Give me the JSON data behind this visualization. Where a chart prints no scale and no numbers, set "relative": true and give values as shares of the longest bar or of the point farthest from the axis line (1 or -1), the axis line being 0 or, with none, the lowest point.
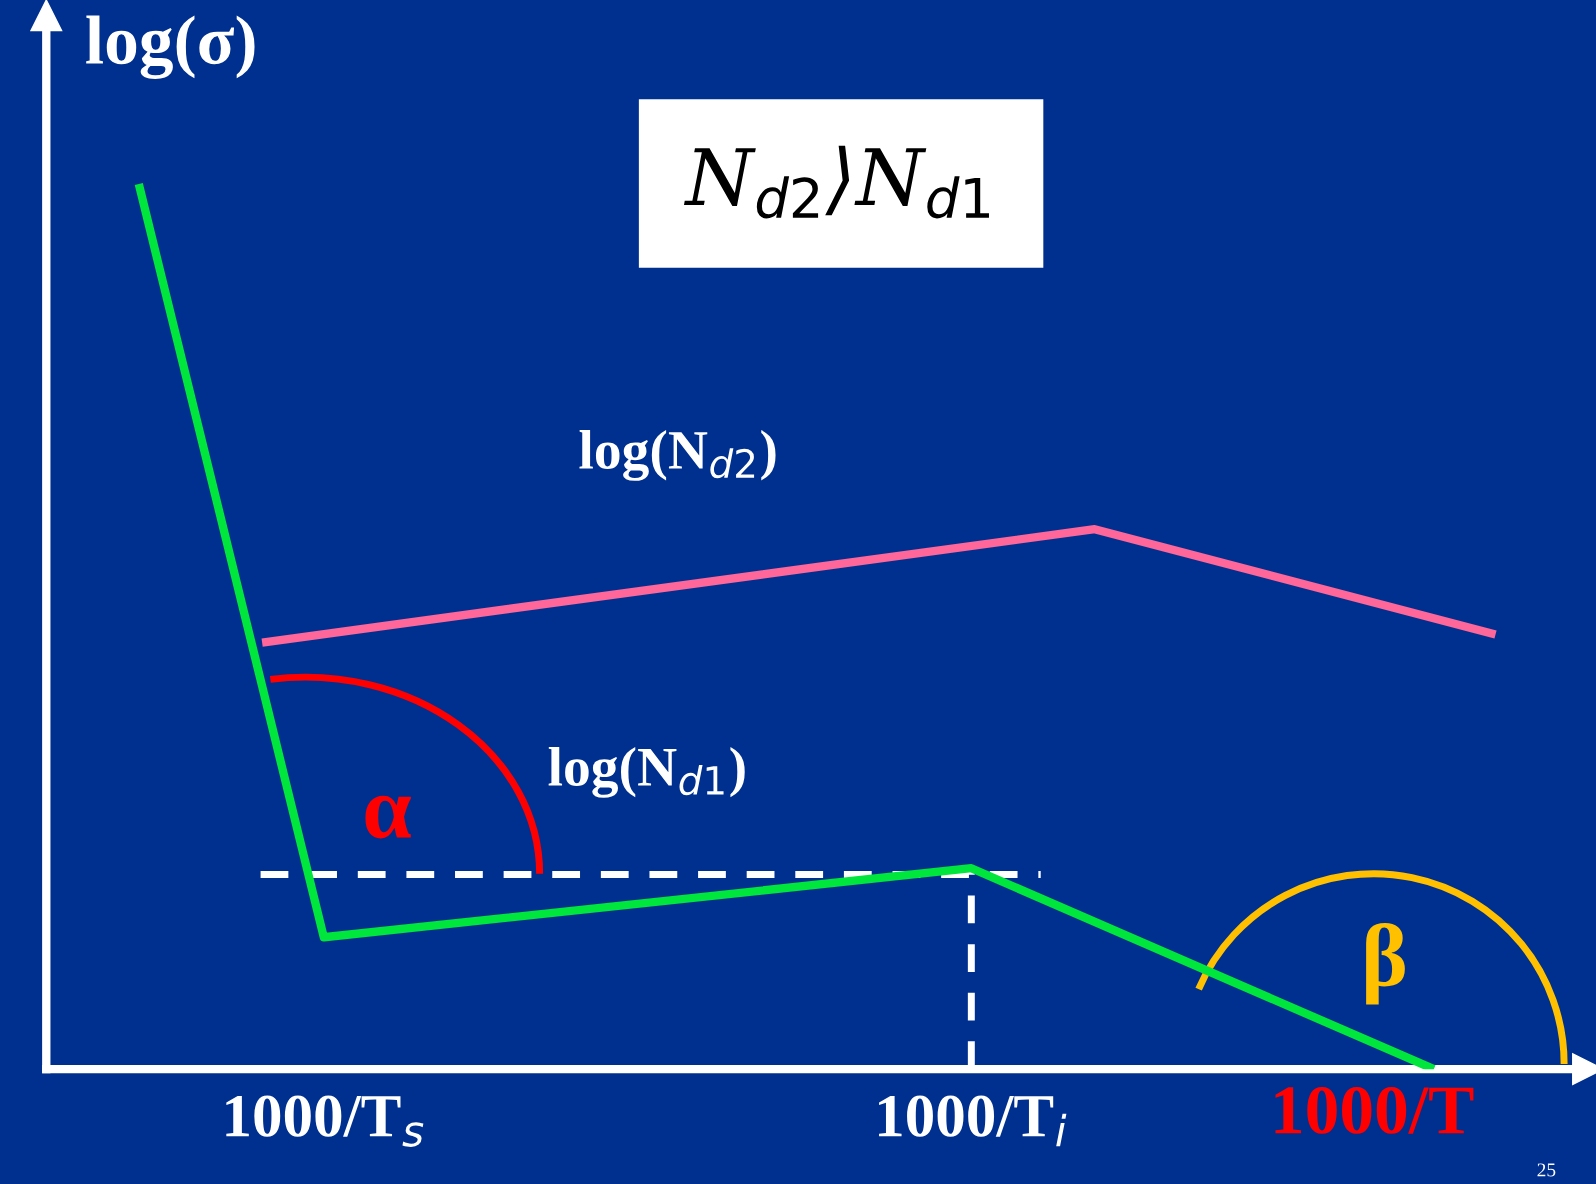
{
  "chart_data": {
    "type": "line",
    "relative": true,
    "ylabel": "log(σ)",
    "xlabel": "1000/T",
    "categories": [
      null,
      null,
      null,
      null,
      null,
      null,
      null,
      null,
      null,
      "1000/T$_{s}$",
      null,
      null,
      null,
      null,
      null,
      null,
      null,
      null,
      null,
      null,
      null,
      null,
      null,
      null,
      null,
      null,
      null,
      null,
      null,
      null,
      "1000/T$_{i}$",
      null,
      null,
      null,
      null,
      null,
      null,
      null,
      null,
      null,
      null,
      null,
      null,
      null,
      null,
      null,
      null,
      null,
      null,
      null
    ],
    "series": [
      {
        "name": "log(N$_{d1}$)",
        "color": "#00e63c",
        "values": [
          null,
          null,
          null,
          1,
          null,
          null,
          null,
          null,
          null,
          0.149,
          null,
          null,
          null,
          null,
          null,
          null,
          null,
          null,
          null,
          null,
          null,
          null,
          null,
          null,
          null,
          null,
          null,
          null,
          null,
          null,
          0.227,
          null,
          null,
          null,
          null,
          null,
          null,
          null,
          null,
          null,
          null,
          null,
          null,
          null,
          null,
          0,
          null,
          null,
          null,
          null
        ]
      },
      {
        "name": "log(N$_{d2}$)",
        "color": "#ff6699",
        "values": [
          null,
          null,
          null,
          null,
          null,
          null,
          null,
          0.482,
          null,
          null,
          null,
          null,
          null,
          null,
          null,
          null,
          null,
          null,
          null,
          null,
          null,
          null,
          null,
          null,
          null,
          null,
          null,
          null,
          null,
          null,
          null,
          null,
          null,
          null,
          0.61,
          null,
          null,
          null,
          null,
          null,
          null,
          null,
          null,
          null,
          null,
          null,
          null,
          0.491,
          null,
          null
        ]
      }
    ],
    "ref_lines": [
      {
        "axis": "y",
        "value": 0.22,
        "color": "#ffffff",
        "line_style": "dashed"
      },
      {
        "axis": "x",
        "value": "1000/T$_{i}$",
        "color": "#ffffff",
        "line_style": "dashed"
      }
    ],
    "annotations": [
      "N$_{d2}$⟩N$_{d1}$",
      "α",
      "β",
      "25"
    ],
    "grid": false,
    "legend": false,
    "marker": "none",
    "line_style": "solid"
  }
}
